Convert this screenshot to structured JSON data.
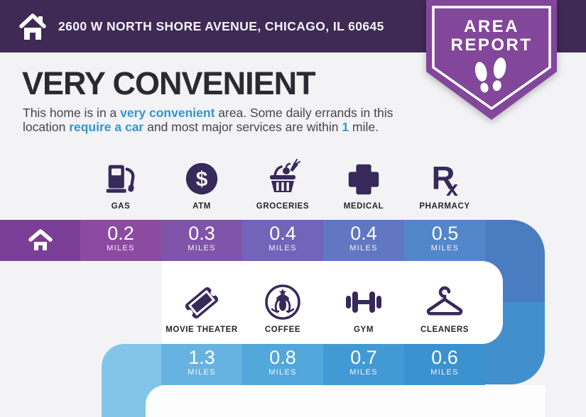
{
  "colors": {
    "bg": "#f3f3f5",
    "header_bg": "#3e2a55",
    "badge": "#82479b",
    "icon_purple": "#37295a",
    "title_color": "#2c2a31",
    "text_color": "#45444c",
    "accent": "#3095d2"
  },
  "header": {
    "address": "2600 W NORTH SHORE AVENUE, CHICAGO, IL 60645",
    "badge_line1": "AREA",
    "badge_line2": "REPORT"
  },
  "main": {
    "title": "VERY CONVENIENT",
    "paragraph_lines": [
      [
        {
          "t": "This home is in a "
        },
        {
          "t": "very convenient",
          "hl": true
        },
        {
          "t": " area. Some daily errands in this"
        }
      ],
      [
        {
          "t": "location "
        },
        {
          "t": "require a car",
          "hl": true
        },
        {
          "t": " and most major services are within "
        },
        {
          "t": "1",
          "hl": true
        },
        {
          "t": " mile."
        }
      ]
    ]
  },
  "path": {
    "home_color": "#7b3e96",
    "curve_top": "#4a7cc2",
    "curve_bottom": "#4190cd",
    "row2_corner_color": "#82c5e9"
  },
  "rows": [
    {
      "places": [
        {
          "label": "GAS",
          "icon": "gas-pump-icon",
          "distance": "0.2",
          "unit": "MILES",
          "color": "#8c4aa1"
        },
        {
          "label": "ATM",
          "icon": "atm-dollar-icon",
          "distance": "0.3",
          "unit": "MILES",
          "color": "#8054a9"
        },
        {
          "label": "GROCERIES",
          "icon": "grocery-basket-icon",
          "distance": "0.4",
          "unit": "MILES",
          "color": "#7264b8"
        },
        {
          "label": "MEDICAL",
          "icon": "medical-cross-icon",
          "distance": "0.4",
          "unit": "MILES",
          "color": "#6277c2"
        },
        {
          "label": "PHARMACY",
          "icon": "pharmacy-rx-icon",
          "distance": "0.5",
          "unit": "MILES",
          "color": "#5287cb"
        }
      ]
    },
    {
      "places": [
        {
          "label": "MOVIE THEATER",
          "icon": "movie-ticket-icon",
          "distance": "1.3",
          "unit": "MILES",
          "color": "#66b3e1"
        },
        {
          "label": "COFFEE",
          "icon": "coffee-siren-icon",
          "distance": "0.8",
          "unit": "MILES",
          "color": "#52a7db"
        },
        {
          "label": "GYM",
          "icon": "dumbbell-icon",
          "distance": "0.7",
          "unit": "MILES",
          "color": "#4399d4"
        },
        {
          "label": "CLEANERS",
          "icon": "clothes-hanger-icon",
          "distance": "0.6",
          "unit": "MILES",
          "color": "#3c91cf"
        }
      ]
    }
  ]
}
